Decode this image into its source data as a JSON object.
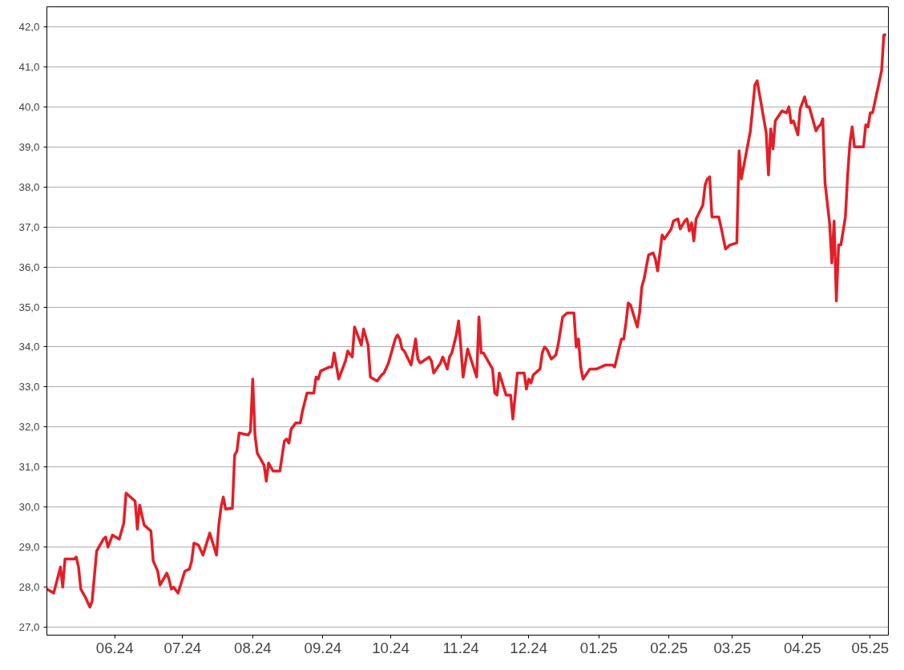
{
  "chart_data": {
    "type": "line",
    "grid": "y",
    "line_style": "solid",
    "marker": "none",
    "xlim": [
      "2024-05-02",
      "2025-05-09"
    ],
    "xticks": [
      {
        "value": "2024-06-01",
        "label": "06.24"
      },
      {
        "value": "2024-07-01",
        "label": "07.24"
      },
      {
        "value": "2024-08-01",
        "label": "08.24"
      },
      {
        "value": "2024-09-01",
        "label": "09.24"
      },
      {
        "value": "2024-10-01",
        "label": "10.24"
      },
      {
        "value": "2024-11-01",
        "label": "11.24"
      },
      {
        "value": "2024-12-01",
        "label": "12.24"
      },
      {
        "value": "2025-01-01",
        "label": "01.25"
      },
      {
        "value": "2025-02-01",
        "label": "02.25"
      },
      {
        "value": "2025-03-01",
        "label": "03.25"
      },
      {
        "value": "2025-04-01",
        "label": "04.25"
      },
      {
        "value": "2025-05-01",
        "label": "05.25"
      }
    ],
    "ylim": [
      26.8,
      42.5
    ],
    "yticks": [
      {
        "value": 27,
        "label": "27,0"
      },
      {
        "value": 28,
        "label": "28,0"
      },
      {
        "value": 29,
        "label": "29,0"
      },
      {
        "value": 30,
        "label": "30,0"
      },
      {
        "value": 31,
        "label": "31,0"
      },
      {
        "value": 32,
        "label": "32,0"
      },
      {
        "value": 33,
        "label": "33,0"
      },
      {
        "value": 34,
        "label": "34,0"
      },
      {
        "value": 35,
        "label": "35,0"
      },
      {
        "value": 36,
        "label": "36,0"
      },
      {
        "value": 37,
        "label": "37,0"
      },
      {
        "value": 38,
        "label": "38,0"
      },
      {
        "value": 39,
        "label": "39,0"
      },
      {
        "value": 40,
        "label": "40,0"
      },
      {
        "value": 41,
        "label": "41,0"
      },
      {
        "value": 42,
        "label": "42,0"
      }
    ],
    "series": [
      {
        "color": "#e41e26",
        "x": [
          "2024-05-02",
          "2024-05-05",
          "2024-05-08",
          "2024-05-09",
          "2024-05-10",
          "2024-05-14",
          "2024-05-15",
          "2024-05-16",
          "2024-05-17",
          "2024-05-19",
          "2024-05-21",
          "2024-05-22",
          "2024-05-24",
          "2024-05-27",
          "2024-05-28",
          "2024-05-29",
          "2024-05-31",
          "2024-06-03",
          "2024-06-05",
          "2024-06-06",
          "2024-06-10",
          "2024-06-11",
          "2024-06-12",
          "2024-06-14",
          "2024-06-17",
          "2024-06-18",
          "2024-06-20",
          "2024-06-21",
          "2024-06-24",
          "2024-06-25",
          "2024-06-26",
          "2024-06-27",
          "2024-06-29",
          "2024-07-02",
          "2024-07-04",
          "2024-07-05",
          "2024-07-06",
          "2024-07-08",
          "2024-07-10",
          "2024-07-13",
          "2024-07-16",
          "2024-07-17",
          "2024-07-18",
          "2024-07-19",
          "2024-07-20",
          "2024-07-23",
          "2024-07-24",
          "2024-07-25",
          "2024-07-26",
          "2024-07-30",
          "2024-07-31",
          "2024-08-01",
          "2024-08-02",
          "2024-08-03",
          "2024-08-06",
          "2024-08-07",
          "2024-08-08",
          "2024-08-10",
          "2024-08-13",
          "2024-08-15",
          "2024-08-16",
          "2024-08-17",
          "2024-08-18",
          "2024-08-20",
          "2024-08-22",
          "2024-08-23",
          "2024-08-25",
          "2024-08-28",
          "2024-08-29",
          "2024-08-30",
          "2024-08-31",
          "2024-09-04",
          "2024-09-05",
          "2024-09-06",
          "2024-09-08",
          "2024-09-11",
          "2024-09-12",
          "2024-09-14",
          "2024-09-15",
          "2024-09-18",
          "2024-09-19",
          "2024-09-21",
          "2024-09-22",
          "2024-09-25",
          "2024-09-27",
          "2024-09-28",
          "2024-09-30",
          "2024-10-03",
          "2024-10-04",
          "2024-10-05",
          "2024-10-06",
          "2024-10-07",
          "2024-10-10",
          "2024-10-12",
          "2024-10-13",
          "2024-10-14",
          "2024-10-18",
          "2024-10-19",
          "2024-10-20",
          "2024-10-23",
          "2024-10-24",
          "2024-10-26",
          "2024-10-27",
          "2024-10-28",
          "2024-10-30",
          "2024-10-31",
          "2024-11-01",
          "2024-11-02",
          "2024-11-04",
          "2024-11-08",
          "2024-11-09",
          "2024-11-10",
          "2024-11-11",
          "2024-11-15",
          "2024-11-16",
          "2024-11-17",
          "2024-11-18",
          "2024-11-21",
          "2024-11-23",
          "2024-11-24",
          "2024-11-26",
          "2024-11-29",
          "2024-11-30",
          "2024-12-01",
          "2024-12-02",
          "2024-12-03",
          "2024-12-06",
          "2024-12-07",
          "2024-12-08",
          "2024-12-09",
          "2024-12-11",
          "2024-12-13",
          "2024-12-14",
          "2024-12-16",
          "2024-12-18",
          "2024-12-21",
          "2024-12-22",
          "2024-12-23",
          "2024-12-24",
          "2024-12-25",
          "2024-12-28",
          "2024-12-31",
          "2025-01-04",
          "2025-01-07",
          "2025-01-08",
          "2025-01-11",
          "2025-01-12",
          "2025-01-13",
          "2025-01-14",
          "2025-01-15",
          "2025-01-18",
          "2025-01-19",
          "2025-01-20",
          "2025-01-21",
          "2025-01-23",
          "2025-01-25",
          "2025-01-26",
          "2025-01-27",
          "2025-01-29",
          "2025-01-30",
          "2025-02-02",
          "2025-02-03",
          "2025-02-05",
          "2025-02-06",
          "2025-02-08",
          "2025-02-09",
          "2025-02-10",
          "2025-02-11",
          "2025-02-12",
          "2025-02-13",
          "2025-02-16",
          "2025-02-17",
          "2025-02-18",
          "2025-02-19",
          "2025-02-20",
          "2025-02-23",
          "2025-02-24",
          "2025-02-26",
          "2025-02-28",
          "2025-03-03",
          "2025-03-04",
          "2025-03-05",
          "2025-03-09",
          "2025-03-11",
          "2025-03-12",
          "2025-03-16",
          "2025-03-17",
          "2025-03-18",
          "2025-03-19",
          "2025-03-20",
          "2025-03-23",
          "2025-03-25",
          "2025-03-26",
          "2025-03-27",
          "2025-03-28",
          "2025-03-30",
          "2025-03-31",
          "2025-04-02",
          "2025-04-03",
          "2025-04-04",
          "2025-04-07",
          "2025-04-08",
          "2025-04-09",
          "2025-04-10",
          "2025-04-11",
          "2025-04-13",
          "2025-04-14",
          "2025-04-15",
          "2025-04-16",
          "2025-04-17",
          "2025-04-18",
          "2025-04-20",
          "2025-04-21",
          "2025-04-22",
          "2025-04-23",
          "2025-04-24",
          "2025-04-28",
          "2025-04-29",
          "2025-04-30",
          "2025-05-01",
          "2025-05-02",
          "2025-05-06",
          "2025-05-07",
          "2025-05-08"
        ],
        "values": [
          27.95,
          27.85,
          28.5,
          28.0,
          28.7,
          28.7,
          28.75,
          28.5,
          27.95,
          27.75,
          27.5,
          27.65,
          28.9,
          29.2,
          29.25,
          29.0,
          29.3,
          29.2,
          29.6,
          30.35,
          30.15,
          29.45,
          30.05,
          29.55,
          29.4,
          28.65,
          28.4,
          28.05,
          28.35,
          28.2,
          27.95,
          28.0,
          27.85,
          28.4,
          28.45,
          28.65,
          29.1,
          29.05,
          28.8,
          29.35,
          28.8,
          29.55,
          30.0,
          30.25,
          29.95,
          29.97,
          31.3,
          31.4,
          31.85,
          31.8,
          31.9,
          33.2,
          31.8,
          31.35,
          31.05,
          30.65,
          31.1,
          30.9,
          30.9,
          31.65,
          31.7,
          31.6,
          31.95,
          32.1,
          32.1,
          32.4,
          32.85,
          32.85,
          33.25,
          33.2,
          33.4,
          33.5,
          33.5,
          33.85,
          33.2,
          33.65,
          33.9,
          33.75,
          34.5,
          34.05,
          34.45,
          34.05,
          33.25,
          33.15,
          33.3,
          33.35,
          33.6,
          34.2,
          34.3,
          34.2,
          33.95,
          33.9,
          33.55,
          34.2,
          33.7,
          33.6,
          33.75,
          33.65,
          33.35,
          33.6,
          33.75,
          33.45,
          33.75,
          33.85,
          34.3,
          34.65,
          34.0,
          33.25,
          33.95,
          33.25,
          34.75,
          33.85,
          33.85,
          33.45,
          32.85,
          32.8,
          33.35,
          32.8,
          32.8,
          32.2,
          33.35,
          33.35,
          32.95,
          33.2,
          33.1,
          33.3,
          33.45,
          33.85,
          34.0,
          33.95,
          33.7,
          33.8,
          34.05,
          34.75,
          34.85,
          34.85,
          34.0,
          34.2,
          33.5,
          33.2,
          33.45,
          33.45,
          33.55,
          33.55,
          33.5,
          34.2,
          34.2,
          34.6,
          35.1,
          35.05,
          34.5,
          34.85,
          35.5,
          35.7,
          36.3,
          36.35,
          36.2,
          35.9,
          36.8,
          36.7,
          36.95,
          37.15,
          37.2,
          36.95,
          37.15,
          37.2,
          36.9,
          37.1,
          36.65,
          37.2,
          37.55,
          38.05,
          38.2,
          38.25,
          37.25,
          37.25,
          37.0,
          36.45,
          36.55,
          36.6,
          38.9,
          38.2,
          39.4,
          40.55,
          40.65,
          39.35,
          38.3,
          39.45,
          38.95,
          39.65,
          39.9,
          39.85,
          40.0,
          39.6,
          39.65,
          39.3,
          39.95,
          40.25,
          40.0,
          40.0,
          39.4,
          39.5,
          39.55,
          39.7,
          38.1,
          37.1,
          36.1,
          37.15,
          35.15,
          36.55,
          36.55,
          37.25,
          38.3,
          39.1,
          39.5,
          39.0,
          39.0,
          39.55,
          39.5,
          39.85,
          39.85,
          40.9,
          41.8,
          41.8
        ]
      }
    ]
  }
}
